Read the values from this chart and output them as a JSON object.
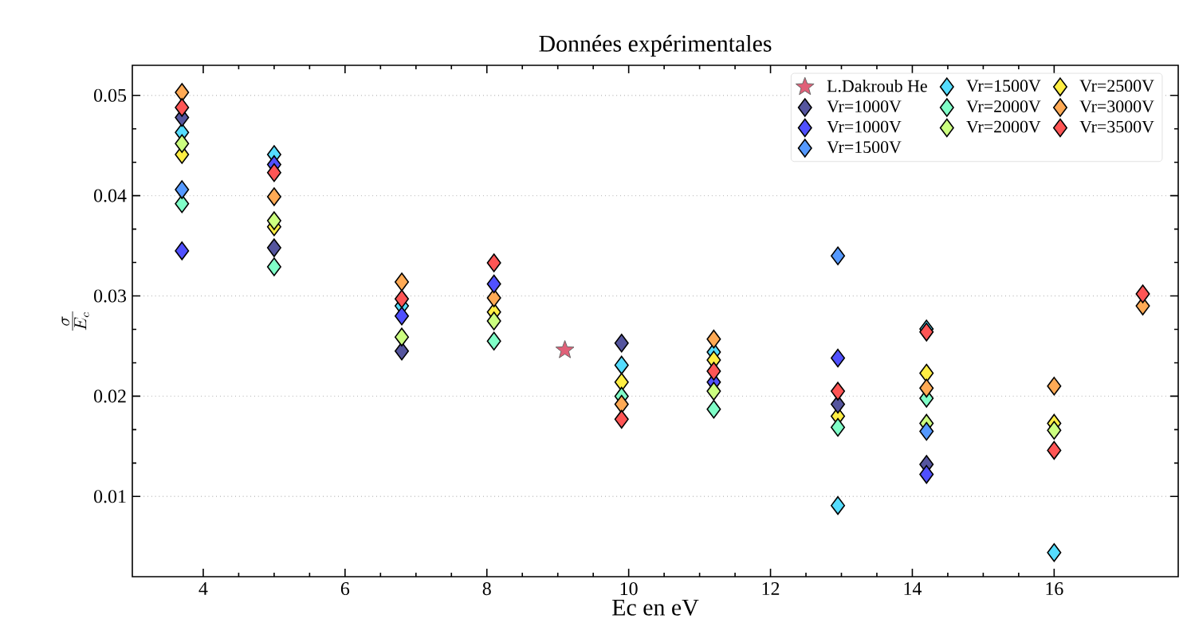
{
  "chart_data": {
    "type": "scatter",
    "title": "Données expérimentales",
    "xlabel": "Ec en eV",
    "ylabel": "\\frac{\\sigma}{E_c}",
    "x": [
      3.7,
      5.0,
      6.8,
      8.1,
      9.9,
      11.2,
      12.95,
      14.2,
      16.0,
      17.25
    ],
    "series": [
      {
        "name": "L.Dakroub He",
        "color": "#e06078",
        "marker": "star",
        "x": [
          9.1
        ],
        "values": [
          0.0246
        ]
      },
      {
        "name": "Vr=1000V",
        "color": "#55559e",
        "values": [
          0.0478,
          0.0348,
          0.0245,
          null,
          0.0253,
          null,
          0.0192,
          0.0132,
          null,
          null
        ]
      },
      {
        "name": "Vr=1000V",
        "color": "#5050ff",
        "values": [
          0.0345,
          0.0431,
          0.028,
          0.0312,
          null,
          0.0214,
          0.0238,
          0.0122,
          null,
          null
        ]
      },
      {
        "name": "Vr=1500V",
        "color": "#5599ff",
        "values": [
          0.0406,
          null,
          null,
          null,
          null,
          null,
          0.034,
          0.0165,
          null,
          null
        ]
      },
      {
        "name": "Vr=1500V",
        "color": "#55ddff",
        "values": [
          0.0463,
          0.0441,
          0.029,
          null,
          0.0231,
          0.0244,
          0.0091,
          0.0267,
          0.0044,
          null
        ]
      },
      {
        "name": "Vr=2000V",
        "color": "#80ffc8",
        "values": [
          0.0392,
          0.0329,
          null,
          0.0255,
          0.02,
          0.0187,
          0.0169,
          0.0198,
          null,
          null
        ]
      },
      {
        "name": "Vr=2000V",
        "color": "#ccff80",
        "values": [
          0.0452,
          0.0375,
          0.0259,
          0.0275,
          null,
          0.0205,
          null,
          0.0173,
          0.0166,
          null
        ]
      },
      {
        "name": "Vr=2500V",
        "color": "#ffee44",
        "values": [
          0.0441,
          0.0369,
          null,
          0.0284,
          0.0214,
          0.0236,
          0.018,
          0.0223,
          0.0173,
          null
        ]
      },
      {
        "name": "Vr=3000V",
        "color": "#ffaa55",
        "values": [
          0.0503,
          0.0399,
          0.0314,
          0.0298,
          0.0192,
          0.0257,
          null,
          0.0208,
          0.021,
          0.029
        ]
      },
      {
        "name": "Vr=3500V",
        "color": "#ff5555",
        "values": [
          0.0488,
          0.0423,
          0.0297,
          0.0333,
          0.0177,
          0.0225,
          0.0205,
          0.0264,
          0.0146,
          0.0302
        ]
      }
    ],
    "marker": "diamond",
    "grid": "y",
    "legend": "top right",
    "xlim": [
      3,
      17.75
    ],
    "ylim": [
      0.002,
      0.053
    ],
    "xticks": [
      4,
      6,
      8,
      10,
      12,
      14,
      16
    ],
    "yticks": [
      0.01,
      0.02,
      0.03,
      0.04,
      0.05
    ]
  }
}
